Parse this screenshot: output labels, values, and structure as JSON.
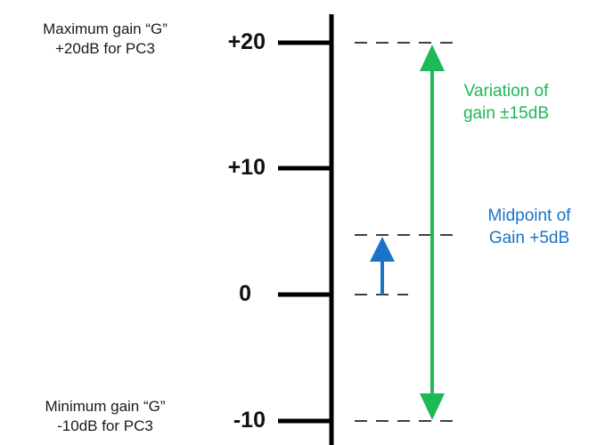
{
  "colors": {
    "axis": "#000000",
    "variation": "#1db954",
    "midpoint": "#1a73c9",
    "text": "#1a1a1a"
  },
  "max_note": {
    "line1": "Maximum gain “G”",
    "line2": "+20dB for PC3"
  },
  "min_note": {
    "line1": "Minimum gain “G”",
    "line2": "-10dB for PC3"
  },
  "ticks": {
    "t20": "+20",
    "t10": "+10",
    "t0": "0",
    "tm10": "-10"
  },
  "variation_note": {
    "line1": "Variation of",
    "line2": "gain ±15dB"
  },
  "midpoint_note": {
    "line1": "Midpoint of",
    "line2": "Gain +5dB"
  }
}
